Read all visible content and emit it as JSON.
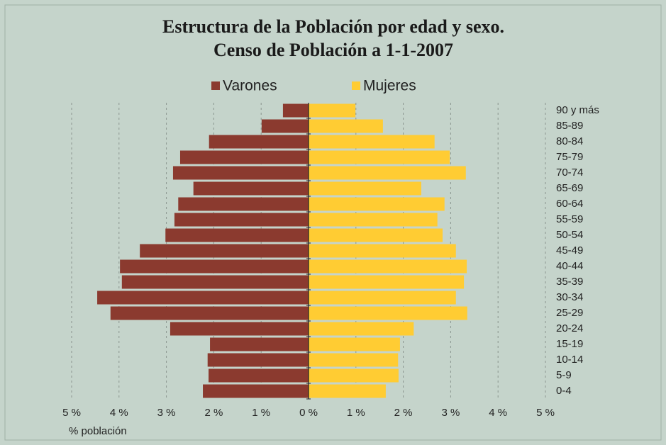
{
  "chart_data": {
    "type": "pyramid",
    "title": "Estructura de la Población por edad y sexo.",
    "subtitle": "Censo de Población a 1-1-2007",
    "x_label": "% población",
    "categories": [
      "90 y más",
      "85-89",
      "80-84",
      "75-79",
      "70-74",
      "65-69",
      "60-64",
      "55-59",
      "50-54",
      "45-49",
      "40-44",
      "35-39",
      "30-34",
      "25-29",
      "20-24",
      "15-19",
      "10-14",
      "5-9",
      "0-4"
    ],
    "series": [
      {
        "name": "Varones",
        "color": "#8b3a2f",
        "side": "left",
        "values": [
          0.54,
          0.99,
          2.1,
          2.71,
          2.86,
          2.43,
          2.75,
          2.83,
          3.02,
          3.56,
          3.98,
          3.94,
          4.46,
          4.18,
          2.92,
          2.08,
          2.13,
          2.11,
          2.23
        ]
      },
      {
        "name": "Mujeres",
        "color": "#ffcc33",
        "side": "right",
        "values": [
          0.99,
          1.57,
          2.66,
          2.98,
          3.32,
          2.38,
          2.87,
          2.72,
          2.83,
          3.11,
          3.34,
          3.28,
          3.11,
          3.35,
          2.22,
          1.93,
          1.89,
          1.9,
          1.63
        ]
      }
    ],
    "xlim": [
      -5,
      5
    ],
    "xticks": [
      {
        "value": -5,
        "label": "5 %"
      },
      {
        "value": -4,
        "label": "4 %"
      },
      {
        "value": -3,
        "label": "3 %"
      },
      {
        "value": -2,
        "label": "2 %"
      },
      {
        "value": -1,
        "label": "1 %"
      },
      {
        "value": 0,
        "label": "0 %"
      },
      {
        "value": 1,
        "label": "1 %"
      },
      {
        "value": 2,
        "label": "2 %"
      },
      {
        "value": 3,
        "label": "3 %"
      },
      {
        "value": 4,
        "label": "4 %"
      },
      {
        "value": 5,
        "label": "5 %"
      }
    ],
    "grid": true
  }
}
